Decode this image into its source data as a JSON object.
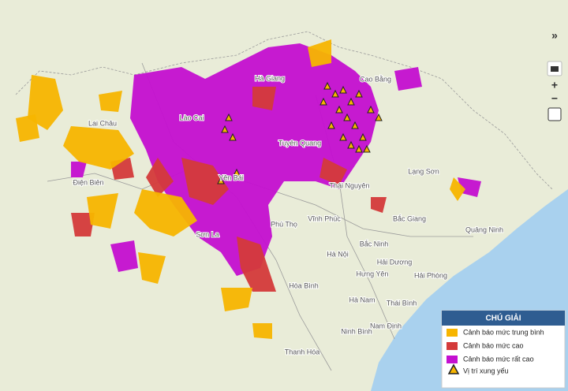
{
  "controls": {
    "collapse": "»",
    "zoom_in": "+",
    "zoom_out": "−"
  },
  "places": [
    "Lai Châu",
    "Lào Cai",
    "Hà Giang",
    "Cao Bằng",
    "Tuyên Quang",
    "Yên Bái",
    "Điện Biên",
    "Thái Nguyên",
    "Lạng Sơn",
    "Sơn La",
    "Phú Thọ",
    "Vĩnh Phúc",
    "Bắc Giang",
    "Quảng Ninh",
    "Bắc Ninh",
    "Hà Nội",
    "Hải Dương",
    "Hưng Yên",
    "Hải Phòng",
    "Hòa Bình",
    "Hà Nam",
    "Thái Bình",
    "Nam Định",
    "Ninh Bình",
    "Thanh Hóa"
  ],
  "legend": {
    "title": "CHÚ GIẢI",
    "items": [
      {
        "label": "Cảnh báo mức trung bình",
        "color": "#f7b500"
      },
      {
        "label": "Cảnh báo mức cao",
        "color": "#d43a3a"
      },
      {
        "label": "Cảnh báo mức rất cao",
        "color": "#c40fd0"
      }
    ],
    "marker": {
      "label": "Vị trí xung yếu"
    }
  }
}
